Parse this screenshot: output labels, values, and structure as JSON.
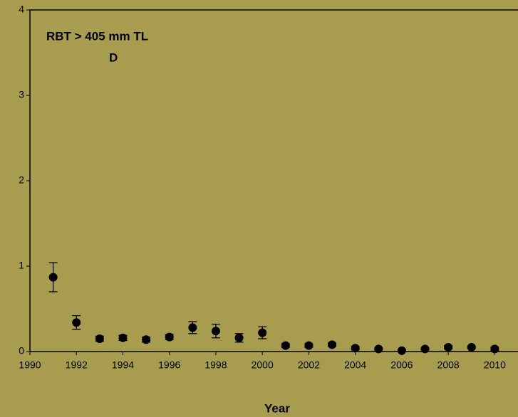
{
  "chart_data": {
    "type": "scatter",
    "title": "RBT  > 405 mm TL",
    "subtitle": "D",
    "x_label": "Year",
    "x": [
      1991,
      1992,
      1993,
      1994,
      1995,
      1996,
      1997,
      1998,
      1999,
      2000,
      2001,
      2002,
      2003,
      2004,
      2005,
      2006,
      2007,
      2008,
      2009,
      2010
    ],
    "values": [
      0.87,
      0.34,
      0.15,
      0.16,
      0.14,
      0.17,
      0.28,
      0.24,
      0.16,
      0.22,
      0.07,
      0.07,
      0.08,
      0.04,
      0.03,
      0.01,
      0.03,
      0.05,
      0.05,
      0.03
    ],
    "errors": [
      0.17,
      0.08,
      0.03,
      0.03,
      0.03,
      0.03,
      0.07,
      0.08,
      0.05,
      0.07,
      0.02,
      0.02,
      0.02,
      0.02,
      0.01,
      0.01,
      0.01,
      0.02,
      0.01,
      0.02
    ],
    "color": "#000000",
    "xlim": [
      1990,
      2011
    ],
    "xticks": [
      1990,
      1992,
      1994,
      1996,
      1998,
      2000,
      2002,
      2004,
      2006,
      2008,
      2010
    ],
    "ylim": [
      0,
      4
    ],
    "yticks": [
      0,
      1,
      2,
      3,
      4
    ],
    "grid": false
  }
}
